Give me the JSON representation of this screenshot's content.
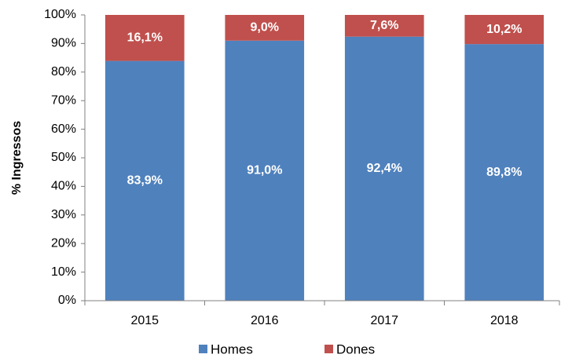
{
  "chart_data": {
    "type": "stacked_bar",
    "y_label": "% Ingressos",
    "categories": [
      "2015",
      "2016",
      "2017",
      "2018"
    ],
    "series": [
      {
        "name": "Homes",
        "color": "#4f81bd",
        "values": [
          83.9,
          91.0,
          92.4,
          89.8
        ],
        "value_labels": [
          "83,9%",
          "91,0%",
          "92,4%",
          "89,8%"
        ]
      },
      {
        "name": "Dones",
        "color": "#c0504d",
        "values": [
          16.1,
          9.0,
          7.6,
          10.2
        ],
        "value_labels": [
          "16,1%",
          "9,0%",
          "7,6%",
          "10,2%"
        ]
      }
    ],
    "ylim": [
      0,
      100
    ],
    "yticks": [
      {
        "value": 0,
        "label": "0%"
      },
      {
        "value": 10,
        "label": "10%"
      },
      {
        "value": 20,
        "label": "20%"
      },
      {
        "value": 30,
        "label": "30%"
      },
      {
        "value": 40,
        "label": "40%"
      },
      {
        "value": 50,
        "label": "50%"
      },
      {
        "value": 60,
        "label": "60%"
      },
      {
        "value": 70,
        "label": "70%"
      },
      {
        "value": 80,
        "label": "80%"
      },
      {
        "value": 90,
        "label": "90%"
      },
      {
        "value": 100,
        "label": "100%"
      }
    ],
    "legend": "bottom"
  }
}
